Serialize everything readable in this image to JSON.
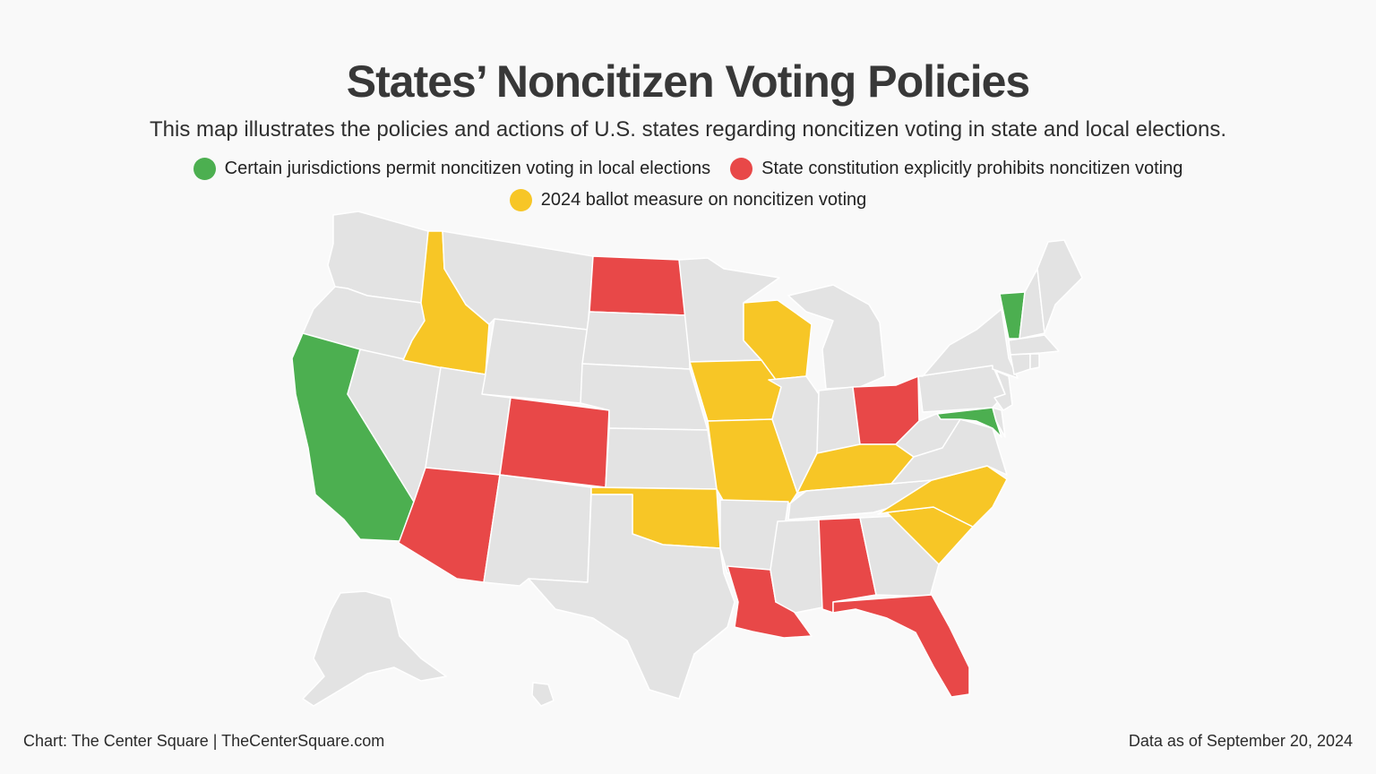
{
  "header": {
    "title": "States’ Noncitizen Voting Policies",
    "subtitle": "This map illustrates the policies and actions of U.S. states regarding noncitizen voting in state and local elections."
  },
  "legend": {
    "items": [
      {
        "label": "Certain jurisdictions permit noncitizen voting in local elections",
        "color": "#4caf50"
      },
      {
        "label": "State constitution explicitly prohibits noncitizen voting",
        "color": "#e84848"
      },
      {
        "label": "2024 ballot measure on noncitizen voting",
        "color": "#f7c626"
      }
    ]
  },
  "colors": {
    "permit": "#4caf50",
    "prohibit": "#e84848",
    "ballot": "#f7c626",
    "none": "#e3e3e3"
  },
  "states": {
    "permit": [
      "California",
      "Vermont",
      "Maryland"
    ],
    "prohibit": [
      "North Dakota",
      "Colorado",
      "Arizona",
      "Ohio",
      "Louisiana",
      "Alabama",
      "Florida"
    ],
    "ballot": [
      "Idaho",
      "Wisconsin",
      "Iowa",
      "Missouri",
      "Kentucky",
      "Oklahoma",
      "North Carolina",
      "South Carolina"
    ]
  },
  "footer": {
    "credit": "Chart: The Center Square | TheCenterSquare.com",
    "date": "Data as of September 20, 2024"
  }
}
